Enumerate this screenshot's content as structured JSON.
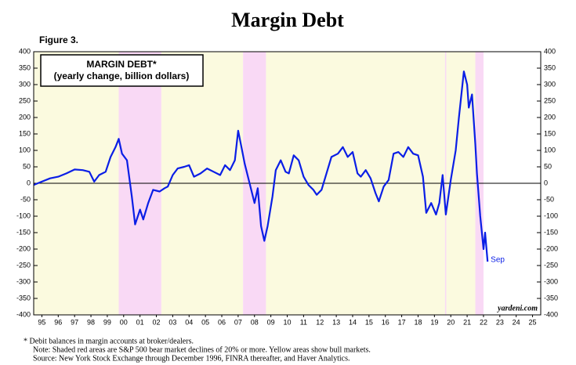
{
  "chart_data": {
    "type": "line",
    "title": "Margin Debt",
    "figure_label": "Figure 3.",
    "legend_box": [
      "MARGIN DEBT*",
      "(yearly change, billion dollars)"
    ],
    "source_tag": "yardeni.com",
    "annotation": {
      "text": "Sep",
      "x": 2022.75,
      "y": -238
    },
    "footnotes": [
      "*   Debit balances in margin accounts at broker/dealers.",
      "Note: Shaded red areas are S&P 500 bear market declines of 20% or more. Yellow areas show bull markets.",
      "Source: New York Stock Exchange through December 1996, FINRA thereafter, and Haver Analytics."
    ],
    "bull_markets": [
      [
        1995,
        2000.2
      ],
      [
        2002.8,
        2007.8
      ],
      [
        2009.2,
        2020.15
      ],
      [
        2020.2,
        2022.0
      ]
    ],
    "bear_markets": [
      [
        2000.2,
        2002.8
      ],
      [
        2007.8,
        2009.2
      ],
      [
        2020.15,
        2020.2
      ],
      [
        2022.0,
        2022.5
      ]
    ],
    "bull_color": "#fbfadf",
    "bear_color": "#f9d9f5",
    "series": [
      {
        "name": "Margin debt",
        "color": "#0a1ee6",
        "x": [
          1995.0,
          1995.5,
          1996.0,
          1996.5,
          1997.0,
          1997.5,
          1998.0,
          1998.4,
          1998.7,
          1999.0,
          1999.4,
          1999.7,
          2000.0,
          2000.2,
          2000.4,
          2000.7,
          2001.0,
          2001.2,
          2001.5,
          2001.7,
          2002.0,
          2002.3,
          2002.7,
          2003.0,
          2003.2,
          2003.5,
          2003.8,
          2004.2,
          2004.5,
          2004.8,
          2005.2,
          2005.6,
          2006.0,
          2006.4,
          2006.7,
          2007.0,
          2007.3,
          2007.5,
          2007.7,
          2007.9,
          2008.2,
          2008.5,
          2008.7,
          2008.9,
          2009.1,
          2009.3,
          2009.6,
          2009.8,
          2010.1,
          2010.4,
          2010.6,
          2010.9,
          2011.2,
          2011.5,
          2011.8,
          2012.1,
          2012.3,
          2012.6,
          2012.9,
          2013.2,
          2013.6,
          2013.9,
          2014.2,
          2014.5,
          2014.8,
          2015.0,
          2015.3,
          2015.6,
          2015.9,
          2016.1,
          2016.4,
          2016.7,
          2017.0,
          2017.3,
          2017.6,
          2017.9,
          2018.2,
          2018.5,
          2018.8,
          2019.0,
          2019.3,
          2019.6,
          2019.8,
          2020.0,
          2020.2,
          2020.5,
          2020.8,
          2021.0,
          2021.3,
          2021.5,
          2021.6,
          2021.8,
          2022.0,
          2022.1,
          2022.3,
          2022.5,
          2022.6,
          2022.75
        ],
        "values": [
          -5,
          5,
          15,
          20,
          30,
          42,
          40,
          35,
          5,
          25,
          35,
          80,
          110,
          135,
          90,
          70,
          -40,
          -125,
          -80,
          -110,
          -60,
          -20,
          -25,
          -15,
          -10,
          25,
          45,
          50,
          55,
          20,
          30,
          45,
          35,
          25,
          55,
          40,
          70,
          160,
          110,
          60,
          0,
          -60,
          -15,
          -130,
          -175,
          -130,
          -40,
          40,
          70,
          35,
          30,
          85,
          70,
          20,
          -5,
          -20,
          -35,
          -20,
          30,
          80,
          90,
          110,
          80,
          95,
          30,
          20,
          40,
          15,
          -30,
          -55,
          -10,
          10,
          90,
          95,
          80,
          110,
          90,
          85,
          20,
          -90,
          -60,
          -95,
          -60,
          25,
          -95,
          10,
          100,
          200,
          340,
          300,
          230,
          270,
          120,
          30,
          -100,
          -200,
          -150,
          -238
        ]
      }
    ],
    "xlim": [
      1995,
      2026
    ],
    "xticks": [
      {
        "value": 1995.5,
        "label": "95"
      },
      {
        "value": 1996.5,
        "label": "96"
      },
      {
        "value": 1997.5,
        "label": "97"
      },
      {
        "value": 1998.5,
        "label": "98"
      },
      {
        "value": 1999.5,
        "label": "99"
      },
      {
        "value": 2000.5,
        "label": "00"
      },
      {
        "value": 2001.5,
        "label": "01"
      },
      {
        "value": 2002.5,
        "label": "02"
      },
      {
        "value": 2003.5,
        "label": "03"
      },
      {
        "value": 2004.5,
        "label": "04"
      },
      {
        "value": 2005.5,
        "label": "05"
      },
      {
        "value": 2006.5,
        "label": "06"
      },
      {
        "value": 2007.5,
        "label": "07"
      },
      {
        "value": 2008.5,
        "label": "08"
      },
      {
        "value": 2009.5,
        "label": "09"
      },
      {
        "value": 2010.5,
        "label": "10"
      },
      {
        "value": 2011.5,
        "label": "11"
      },
      {
        "value": 2012.5,
        "label": "12"
      },
      {
        "value": 2013.5,
        "label": "13"
      },
      {
        "value": 2014.5,
        "label": "14"
      },
      {
        "value": 2015.5,
        "label": "15"
      },
      {
        "value": 2016.5,
        "label": "16"
      },
      {
        "value": 2017.5,
        "label": "17"
      },
      {
        "value": 2018.5,
        "label": "18"
      },
      {
        "value": 2019.5,
        "label": "19"
      },
      {
        "value": 2020.5,
        "label": "20"
      },
      {
        "value": 2021.5,
        "label": "21"
      },
      {
        "value": 2022.5,
        "label": "22"
      },
      {
        "value": 2023.5,
        "label": "23"
      },
      {
        "value": 2024.5,
        "label": "24"
      },
      {
        "value": 2025.5,
        "label": "25"
      }
    ],
    "ylim": [
      -400,
      400
    ],
    "yticks": [
      -400,
      -350,
      -300,
      -250,
      -200,
      -150,
      -100,
      -50,
      0,
      50,
      100,
      150,
      200,
      250,
      300,
      350,
      400
    ]
  }
}
